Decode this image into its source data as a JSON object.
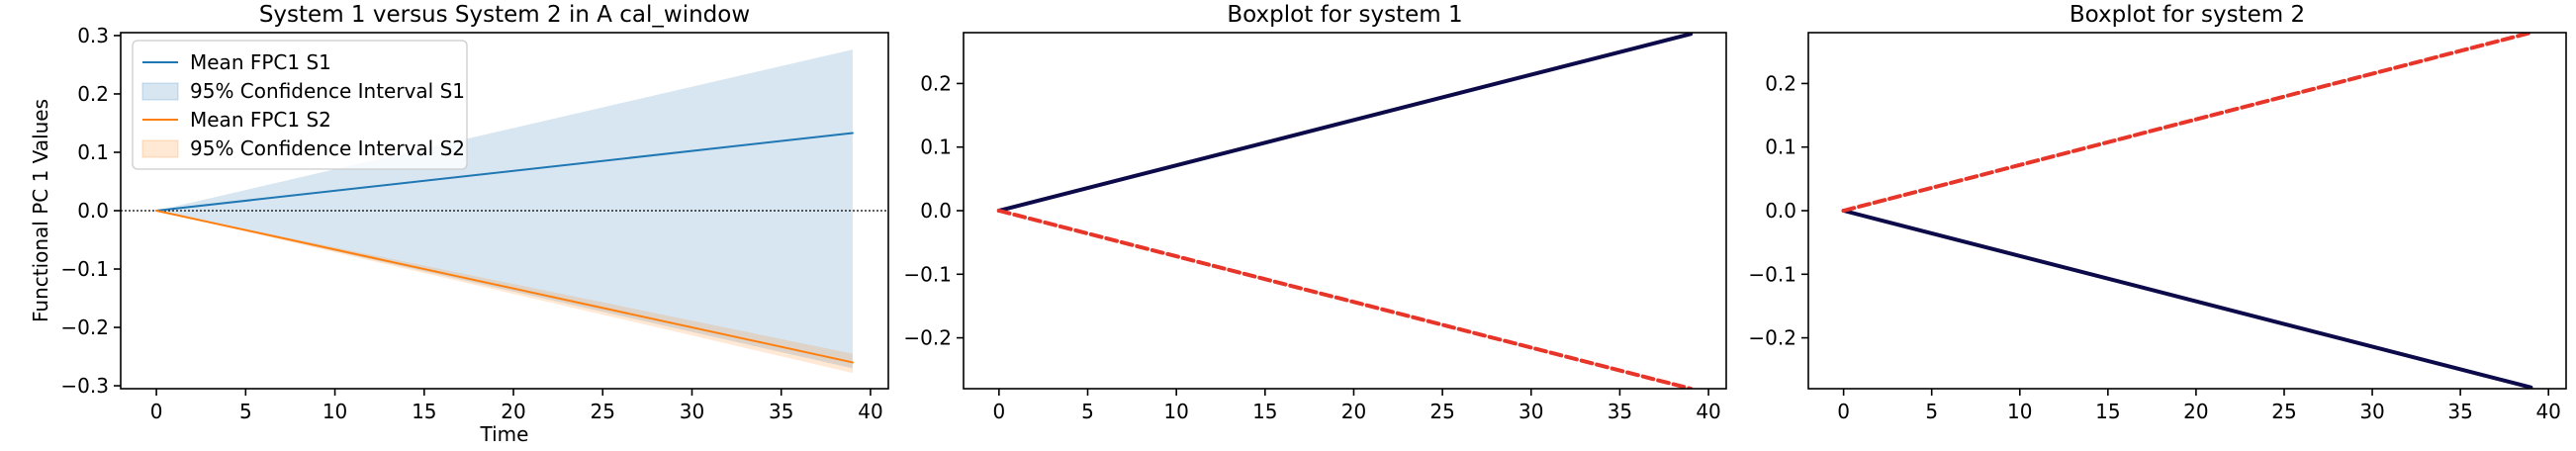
{
  "chart_data": [
    {
      "type": "line",
      "title": "System 1 versus System 2 in A cal_window",
      "xlabel": "Time",
      "ylabel": "Functional PC 1 Values",
      "xlim": [
        -2,
        41
      ],
      "ylim": [
        -0.305,
        0.305
      ],
      "xticks": [
        0,
        5,
        10,
        15,
        20,
        25,
        30,
        35,
        40
      ],
      "xtick_labels": [
        "0",
        "5",
        "10",
        "15",
        "20",
        "25",
        "30",
        "35",
        "40"
      ],
      "yticks": [
        -0.3,
        -0.2,
        -0.1,
        0.0,
        0.1,
        0.2,
        0.3
      ],
      "ytick_labels": [
        "−0.3",
        "−0.2",
        "−0.1",
        "0.0",
        "0.1",
        "0.2",
        "0.3"
      ],
      "grid": false,
      "legend_position": "upper-left",
      "reference_line": {
        "y": 0,
        "style": "dotted",
        "color": "#000000"
      },
      "x": [
        0,
        39
      ],
      "series": [
        {
          "name": "Mean FPC1 S1",
          "kind": "line",
          "color": "#1f77b4",
          "x": [
            0,
            39
          ],
          "values": [
            0,
            0.133
          ]
        },
        {
          "name": "95% Confidence Interval S1",
          "kind": "band",
          "color": "#1f77b4",
          "x": [
            0,
            39
          ],
          "lower": [
            0,
            -0.27
          ],
          "upper": [
            0,
            0.276
          ]
        },
        {
          "name": "Mean FPC1 S2",
          "kind": "line",
          "color": "#ff7f0e",
          "x": [
            0,
            39
          ],
          "values": [
            0,
            -0.26
          ]
        },
        {
          "name": "95% Confidence Interval S2",
          "kind": "band",
          "color": "#ff7f0e",
          "x": [
            0,
            39
          ],
          "lower": [
            0,
            -0.278
          ],
          "upper": [
            0,
            -0.245
          ]
        }
      ]
    },
    {
      "type": "line",
      "title": "Boxplot for system 1",
      "xlabel": "",
      "ylabel": "",
      "xlim": [
        -2,
        41
      ],
      "ylim": [
        -0.28,
        0.28
      ],
      "xticks": [
        0,
        5,
        10,
        15,
        20,
        25,
        30,
        35,
        40
      ],
      "xtick_labels": [
        "0",
        "5",
        "10",
        "15",
        "20",
        "25",
        "30",
        "35",
        "40"
      ],
      "yticks": [
        -0.2,
        -0.1,
        0.0,
        0.1,
        0.2
      ],
      "ytick_labels": [
        "−0.2",
        "−0.1",
        "0.0",
        "0.1",
        "0.2"
      ],
      "grid": false,
      "series": [
        {
          "kind": "line",
          "color": "#0d0a4a",
          "style": "solid",
          "x": [
            0,
            39
          ],
          "values": [
            0,
            0.278
          ]
        },
        {
          "kind": "line",
          "color": "#e8352a",
          "style": "dashed",
          "x": [
            0,
            39
          ],
          "values": [
            0,
            -0.28
          ]
        }
      ]
    },
    {
      "type": "line",
      "title": "Boxplot for system 2",
      "xlabel": "",
      "ylabel": "",
      "xlim": [
        -2,
        41
      ],
      "ylim": [
        -0.28,
        0.28
      ],
      "xticks": [
        0,
        5,
        10,
        15,
        20,
        25,
        30,
        35,
        40
      ],
      "xtick_labels": [
        "0",
        "5",
        "10",
        "15",
        "20",
        "25",
        "30",
        "35",
        "40"
      ],
      "yticks": [
        -0.2,
        -0.1,
        0.0,
        0.1,
        0.2
      ],
      "ytick_labels": [
        "−0.2",
        "−0.1",
        "0.0",
        "0.1",
        "0.2"
      ],
      "grid": false,
      "series": [
        {
          "kind": "line",
          "color": "#0d0a4a",
          "style": "solid",
          "x": [
            0,
            39
          ],
          "values": [
            0,
            -0.278
          ]
        },
        {
          "kind": "line",
          "color": "#e8352a",
          "style": "dashed",
          "x": [
            0,
            39
          ],
          "values": [
            0,
            0.28
          ]
        }
      ]
    }
  ]
}
